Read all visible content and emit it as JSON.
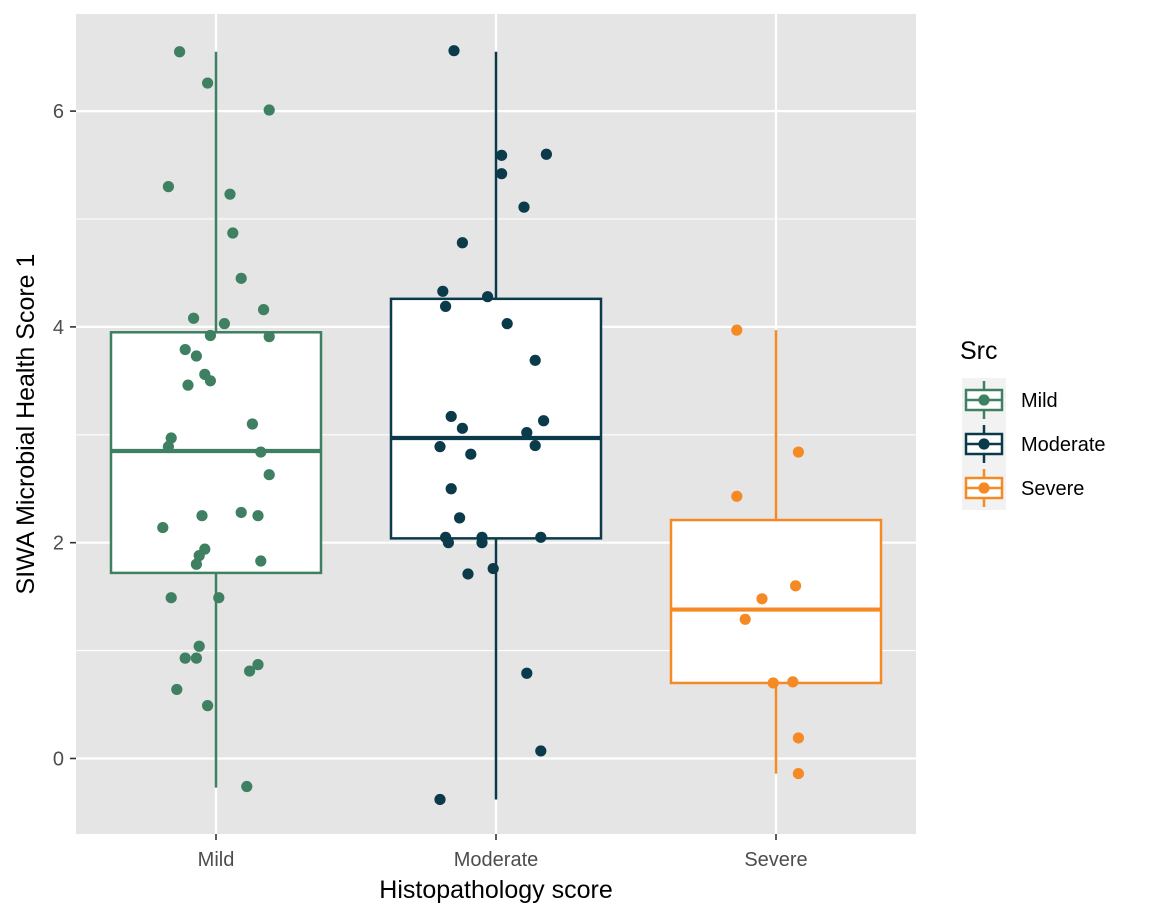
{
  "chart_data": {
    "type": "boxplot",
    "title": "",
    "xlabel": "Histopathology score",
    "ylabel": "SIWA Microbial Health Score 1",
    "categories": [
      "Mild",
      "Moderate",
      "Severe"
    ],
    "ylim": [
      -0.7,
      6.9
    ],
    "y_ticks": [
      0,
      2,
      4,
      6
    ],
    "grid": true,
    "legend": {
      "title": "Src",
      "position": "right",
      "entries": [
        "Mild",
        "Moderate",
        "Severe"
      ]
    },
    "colors": {
      "Mild": "#3f7f62",
      "Moderate": "#0b3a4a",
      "Severe": "#f58a25"
    },
    "boxes": [
      {
        "category": "Mild",
        "whisker_low": -0.27,
        "q1": 1.72,
        "median": 2.85,
        "q3": 3.95,
        "whisker_high": 6.55
      },
      {
        "category": "Moderate",
        "whisker_low": -0.38,
        "q1": 2.04,
        "median": 2.97,
        "q3": 4.26,
        "whisker_high": 6.55
      },
      {
        "category": "Severe",
        "whisker_low": -0.14,
        "q1": 0.7,
        "median": 1.38,
        "q3": 2.21,
        "whisker_high": 3.97
      }
    ],
    "points": {
      "Mild": [
        {
          "jitter": -0.13,
          "y": 6.55
        },
        {
          "jitter": -0.03,
          "y": 6.26
        },
        {
          "jitter": 0.19,
          "y": 6.01
        },
        {
          "jitter": -0.17,
          "y": 5.3
        },
        {
          "jitter": 0.05,
          "y": 5.23
        },
        {
          "jitter": 0.06,
          "y": 4.87
        },
        {
          "jitter": 0.09,
          "y": 4.45
        },
        {
          "jitter": 0.17,
          "y": 4.16
        },
        {
          "jitter": -0.08,
          "y": 4.08
        },
        {
          "jitter": 0.03,
          "y": 4.03
        },
        {
          "jitter": -0.02,
          "y": 3.92
        },
        {
          "jitter": 0.19,
          "y": 3.91
        },
        {
          "jitter": -0.11,
          "y": 3.79
        },
        {
          "jitter": -0.07,
          "y": 3.73
        },
        {
          "jitter": -0.04,
          "y": 3.56
        },
        {
          "jitter": -0.02,
          "y": 3.5
        },
        {
          "jitter": -0.1,
          "y": 3.46
        },
        {
          "jitter": 0.13,
          "y": 3.1
        },
        {
          "jitter": -0.16,
          "y": 2.97
        },
        {
          "jitter": -0.17,
          "y": 2.89
        },
        {
          "jitter": 0.16,
          "y": 2.84
        },
        {
          "jitter": 0.19,
          "y": 2.63
        },
        {
          "jitter": 0.09,
          "y": 2.28
        },
        {
          "jitter": -0.05,
          "y": 2.25
        },
        {
          "jitter": 0.15,
          "y": 2.25
        },
        {
          "jitter": -0.19,
          "y": 2.14
        },
        {
          "jitter": -0.04,
          "y": 1.94
        },
        {
          "jitter": -0.06,
          "y": 1.88
        },
        {
          "jitter": 0.16,
          "y": 1.83
        },
        {
          "jitter": -0.07,
          "y": 1.8
        },
        {
          "jitter": -0.16,
          "y": 1.49
        },
        {
          "jitter": 0.01,
          "y": 1.49
        },
        {
          "jitter": -0.06,
          "y": 1.04
        },
        {
          "jitter": -0.11,
          "y": 0.93
        },
        {
          "jitter": -0.07,
          "y": 0.93
        },
        {
          "jitter": 0.15,
          "y": 0.87
        },
        {
          "jitter": 0.12,
          "y": 0.81
        },
        {
          "jitter": -0.14,
          "y": 0.64
        },
        {
          "jitter": -0.03,
          "y": 0.49
        },
        {
          "jitter": 0.11,
          "y": -0.26
        }
      ],
      "Moderate": [
        {
          "jitter": -0.15,
          "y": 6.56
        },
        {
          "jitter": 0.02,
          "y": 5.59
        },
        {
          "jitter": 0.18,
          "y": 5.6
        },
        {
          "jitter": 0.02,
          "y": 5.42
        },
        {
          "jitter": 0.1,
          "y": 5.11
        },
        {
          "jitter": -0.12,
          "y": 4.78
        },
        {
          "jitter": -0.19,
          "y": 4.33
        },
        {
          "jitter": -0.03,
          "y": 4.28
        },
        {
          "jitter": -0.18,
          "y": 4.19
        },
        {
          "jitter": 0.04,
          "y": 4.03
        },
        {
          "jitter": 0.14,
          "y": 3.69
        },
        {
          "jitter": -0.16,
          "y": 3.17
        },
        {
          "jitter": 0.17,
          "y": 3.13
        },
        {
          "jitter": -0.12,
          "y": 3.06
        },
        {
          "jitter": 0.11,
          "y": 3.02
        },
        {
          "jitter": 0.14,
          "y": 2.9
        },
        {
          "jitter": -0.2,
          "y": 2.89
        },
        {
          "jitter": -0.09,
          "y": 2.82
        },
        {
          "jitter": -0.16,
          "y": 2.5
        },
        {
          "jitter": -0.13,
          "y": 2.23
        },
        {
          "jitter": -0.18,
          "y": 2.05
        },
        {
          "jitter": -0.05,
          "y": 2.05
        },
        {
          "jitter": 0.16,
          "y": 2.05
        },
        {
          "jitter": -0.17,
          "y": 2.0
        },
        {
          "jitter": -0.05,
          "y": 2.0
        },
        {
          "jitter": -0.1,
          "y": 1.71
        },
        {
          "jitter": -0.01,
          "y": 1.76
        },
        {
          "jitter": 0.11,
          "y": 0.79
        },
        {
          "jitter": 0.16,
          "y": 0.07
        },
        {
          "jitter": -0.2,
          "y": -0.38
        }
      ],
      "Severe": [
        {
          "jitter": -0.14,
          "y": 3.97
        },
        {
          "jitter": 0.08,
          "y": 2.84
        },
        {
          "jitter": -0.14,
          "y": 2.43
        },
        {
          "jitter": 0.07,
          "y": 1.6
        },
        {
          "jitter": -0.05,
          "y": 1.48
        },
        {
          "jitter": -0.11,
          "y": 1.29
        },
        {
          "jitter": -0.01,
          "y": 0.7
        },
        {
          "jitter": 0.06,
          "y": 0.71
        },
        {
          "jitter": 0.08,
          "y": 0.19
        },
        {
          "jitter": 0.08,
          "y": -0.14
        }
      ]
    }
  }
}
